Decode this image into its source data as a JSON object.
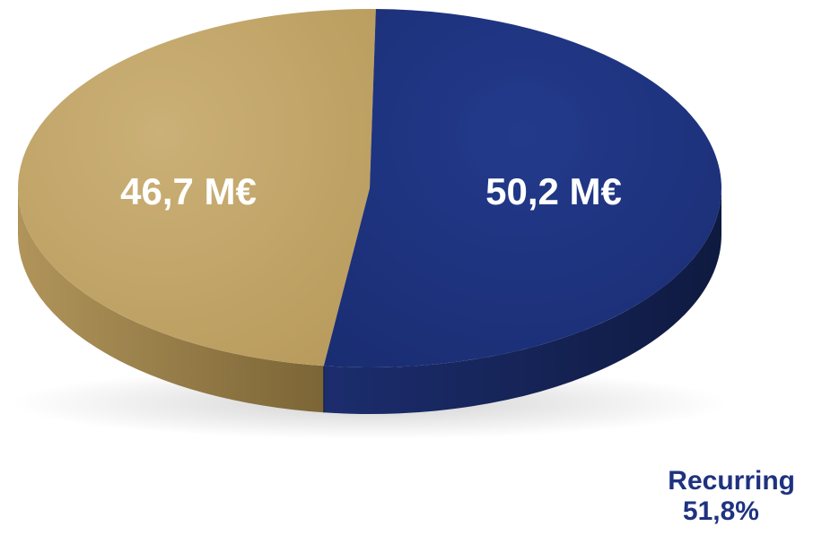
{
  "chart_data": {
    "type": "pie",
    "slices": [
      {
        "label": "46,7 M€",
        "value": 46.7,
        "color": "#c0a465",
        "side_color": "#8e7540"
      },
      {
        "label": "50,2 M€",
        "value": 50.2,
        "color": "#1f3480",
        "side_color": "#14204f"
      }
    ],
    "annotation": {
      "name": "Recurring",
      "percent": "51,8%"
    }
  }
}
